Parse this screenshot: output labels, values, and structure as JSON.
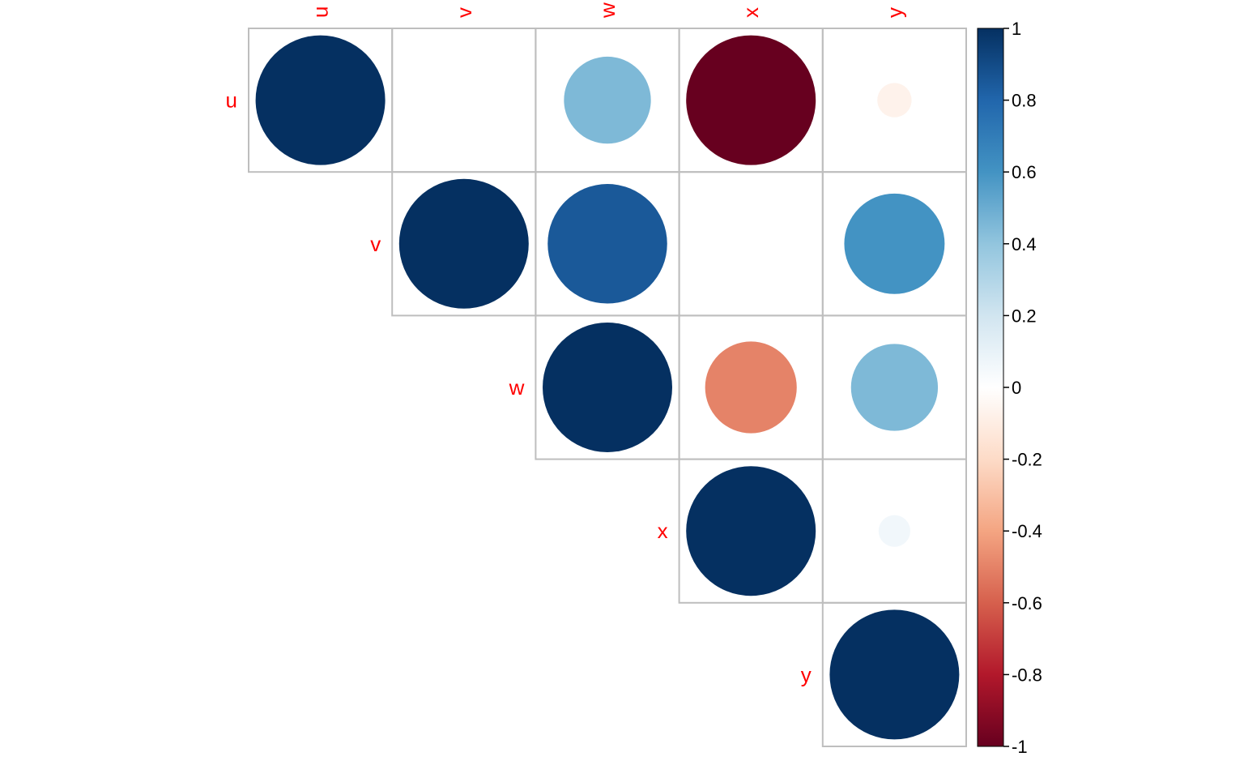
{
  "chart_data": {
    "type": "heatmap",
    "subtype": "correlation-matrix-circles-upper",
    "variables": [
      "u",
      "v",
      "w",
      "x",
      "y"
    ],
    "matrix": [
      [
        1.0,
        0.0,
        0.45,
        -1.0,
        -0.07
      ],
      [
        0.0,
        1.0,
        0.85,
        0.0,
        0.6
      ],
      [
        0.45,
        0.85,
        1.0,
        -0.5,
        0.45
      ],
      [
        -1.0,
        0.0,
        -0.5,
        1.0,
        0.06
      ],
      [
        -0.07,
        0.6,
        0.45,
        0.06,
        1.0
      ]
    ],
    "legend": {
      "placement": "right",
      "range": [
        -1,
        1
      ],
      "ticks": [
        "1",
        "0.8",
        "0.6",
        "0.4",
        "0.2",
        "0",
        "-0.2",
        "-0.4",
        "-0.6",
        "-0.8",
        "-1"
      ]
    },
    "colors": {
      "label": "#ff0000",
      "grid": "#bebebe",
      "scale": [
        "#67001F",
        "#B2182B",
        "#D6604D",
        "#F4A582",
        "#FDDBC7",
        "#FFFFFF",
        "#D1E5F0",
        "#92C5DE",
        "#4393C3",
        "#2166AC",
        "#053061"
      ]
    }
  }
}
